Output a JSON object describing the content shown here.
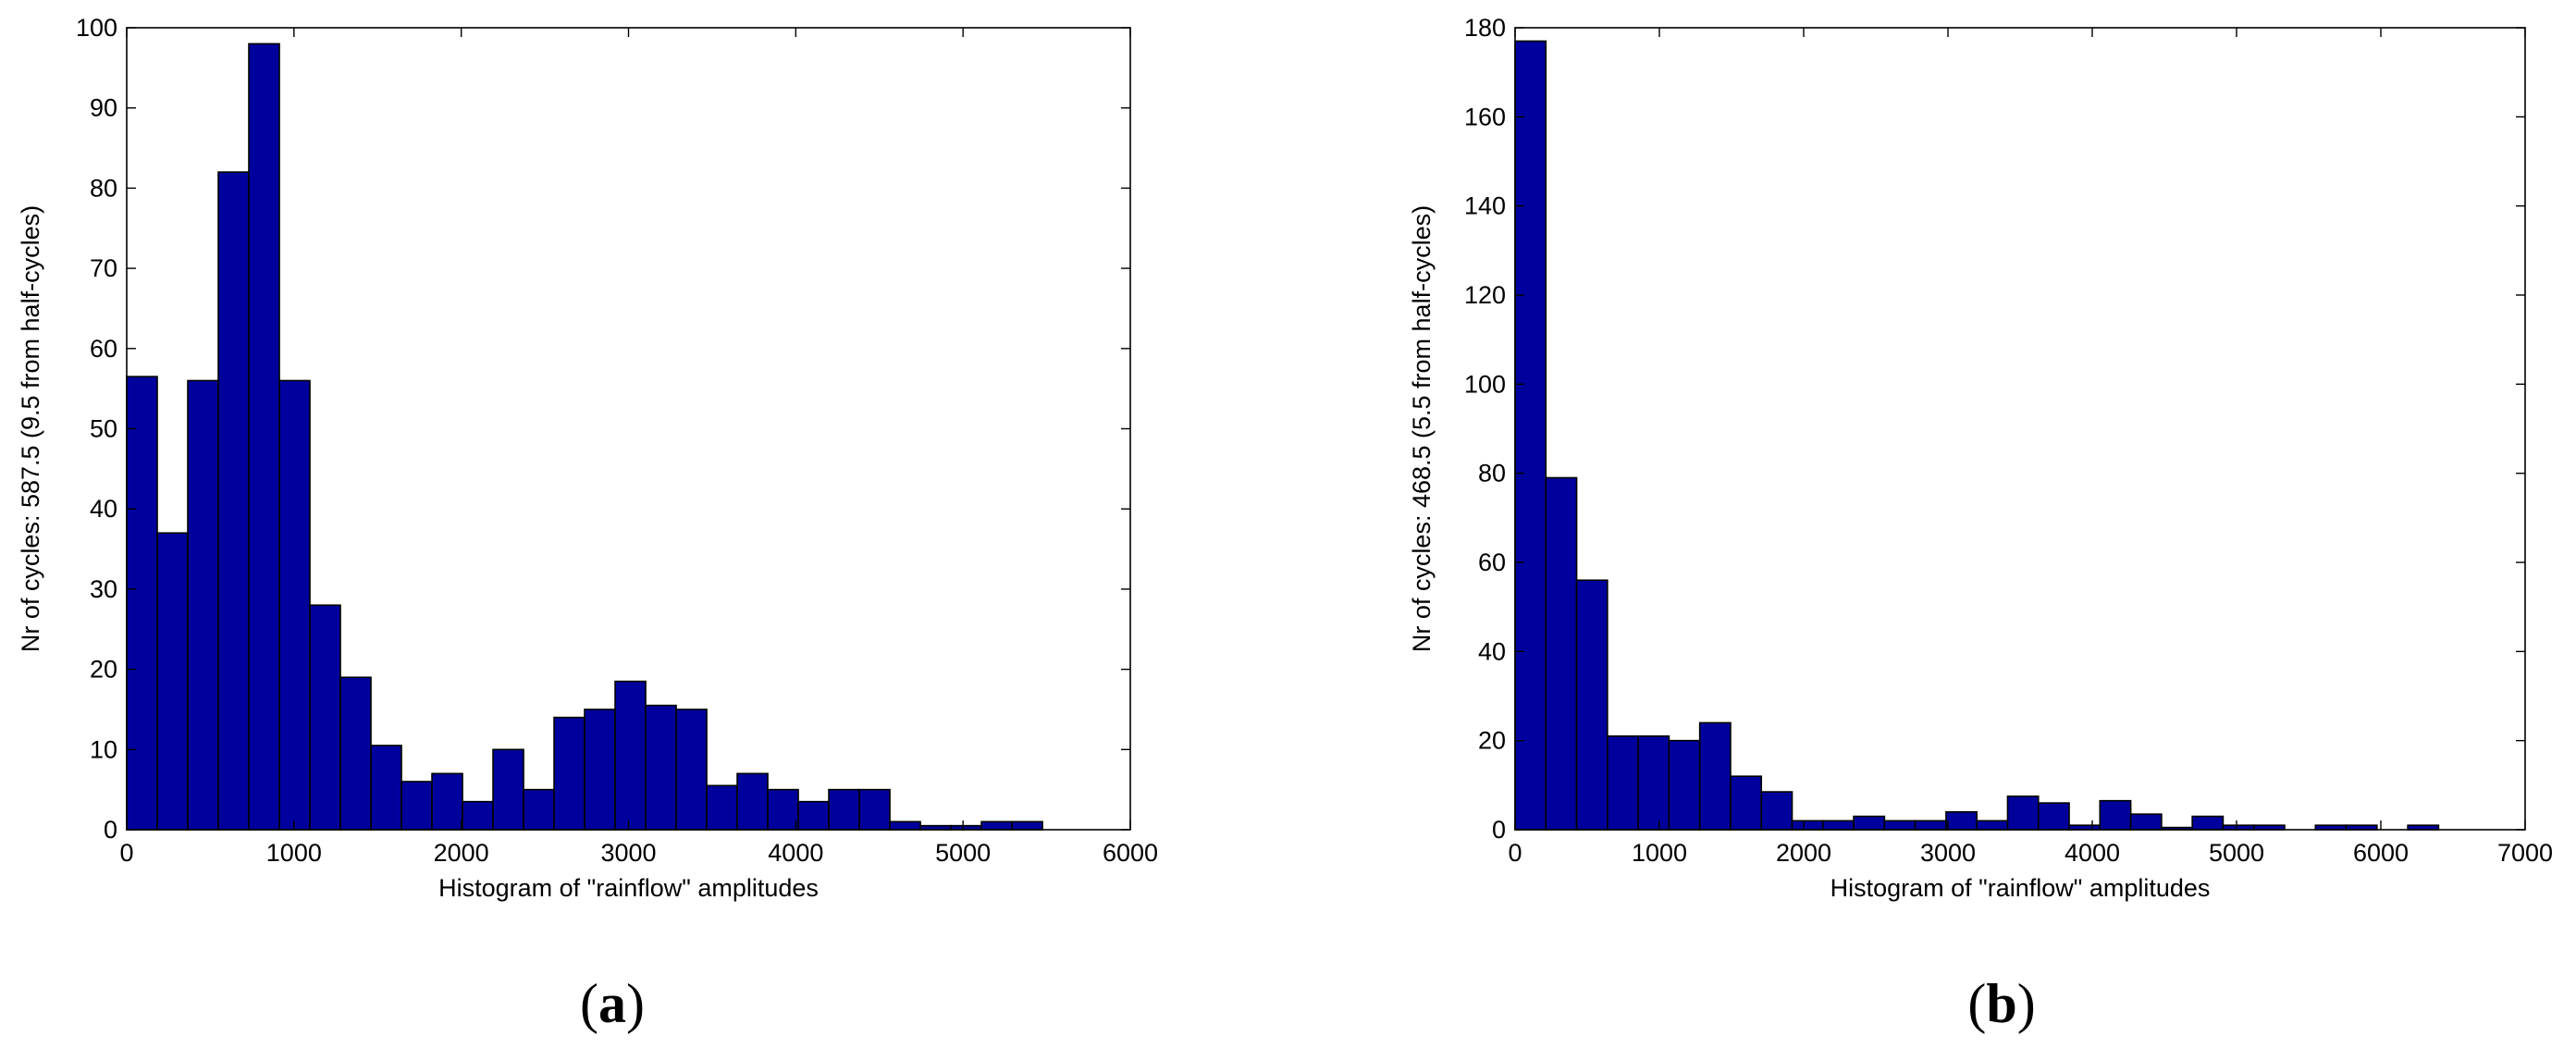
{
  "chart_data": [
    {
      "type": "bar",
      "panel_label_open": "(",
      "panel_label_letter": "a",
      "panel_label_close": ")",
      "xlabel": "Histogram of \"rainflow\" amplitudes",
      "ylabel": "Nr of cycles: 587.5 (9.5 from half-cycles)",
      "xlim": [
        0,
        6000
      ],
      "ylim": [
        0,
        100
      ],
      "x_ticks": [
        0,
        1000,
        2000,
        3000,
        4000,
        5000,
        6000
      ],
      "y_ticks": [
        0,
        10,
        20,
        30,
        40,
        50,
        60,
        70,
        80,
        90,
        100
      ],
      "bin_edges": [
        0,
        182.5,
        365,
        547.5,
        730,
        912.5,
        1095,
        1277.5,
        1460,
        1642.5,
        1825,
        2007.5,
        2190,
        2372.5,
        2555,
        2737.5,
        2920,
        3102.5,
        3285,
        3467.5,
        3650,
        3832.5,
        4015,
        4197.5,
        4380,
        4562.5,
        4745,
        4927.5,
        5110,
        5292.5,
        5475
      ],
      "values": [
        56.5,
        37,
        56,
        82,
        98,
        56,
        28,
        19,
        10.5,
        6,
        7,
        3.5,
        10,
        5,
        14,
        15,
        18.5,
        15.5,
        15,
        5.5,
        7,
        5,
        3.5,
        5,
        5,
        1,
        0.5,
        0.5,
        1,
        1
      ],
      "bar_color": "#00009c",
      "grid": false
    },
    {
      "type": "bar",
      "panel_label_open": "(",
      "panel_label_letter": "b",
      "panel_label_close": ")",
      "xlabel": "Histogram of \"rainflow\" amplitudes",
      "ylabel": "Nr of cycles: 468.5 (5.5 from half-cycles)",
      "xlim": [
        0,
        7000
      ],
      "ylim": [
        0,
        180
      ],
      "x_ticks": [
        0,
        1000,
        2000,
        3000,
        4000,
        5000,
        6000,
        7000
      ],
      "y_ticks": [
        0,
        20,
        40,
        60,
        80,
        100,
        120,
        140,
        160,
        180
      ],
      "bin_edges": [
        0,
        213.3,
        426.7,
        640,
        853.3,
        1066.7,
        1280,
        1493.3,
        1706.7,
        1920,
        2133.3,
        2346.7,
        2560,
        2773.3,
        2986.7,
        3200,
        3413.3,
        3626.7,
        3840,
        4053.3,
        4266.7,
        4480,
        4693.3,
        4906.7,
        5120,
        5333.3,
        5546.7,
        5760,
        5973.3,
        6186.7,
        6400
      ],
      "values": [
        177,
        79,
        56,
        21,
        21,
        20,
        24,
        12,
        8.5,
        2,
        2,
        3,
        2,
        2,
        4,
        2,
        7.5,
        6,
        1,
        6.5,
        3.5,
        0.5,
        3,
        1,
        1,
        0,
        1,
        1,
        0,
        1
      ],
      "bar_color": "#00009c",
      "grid": false
    }
  ]
}
